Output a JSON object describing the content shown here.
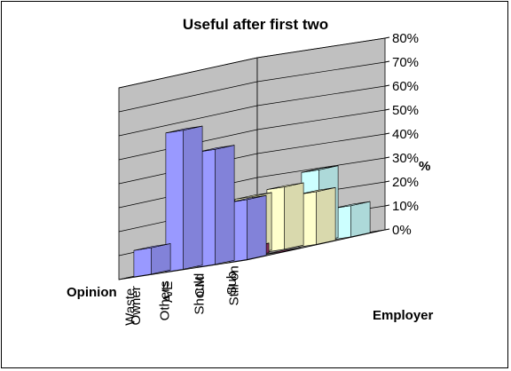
{
  "chart_data": {
    "type": "bar",
    "title": "Useful after first two",
    "zlabel": "%",
    "xlabel": "Employer",
    "ylabel": "Opinion",
    "zlim": [
      0,
      80
    ],
    "zticks": [
      "0%",
      "10%",
      "20%",
      "30%",
      "40%",
      "50%",
      "60%",
      "70%",
      "80%"
    ],
    "categories": [
      "Owner",
      "A/E",
      "CM",
      "Sub"
    ],
    "opinions": [
      "Still on",
      "Should",
      "Others",
      "Waste"
    ],
    "series": [
      {
        "opinion": "Waste",
        "values": [
          11,
          58,
          48,
          25
        ],
        "color": "#9999ff"
      },
      {
        "opinion": "Others",
        "values": [
          7,
          16,
          4,
          0
        ],
        "color": "#993366"
      },
      {
        "opinion": "Should",
        "values": [
          15,
          24,
          26,
          22
        ],
        "color": "#ffffcc"
      },
      {
        "opinion": "Still on",
        "values": [
          9,
          0,
          30,
          13
        ],
        "color": "#ccffff"
      }
    ],
    "grid": true,
    "legend": "none"
  }
}
